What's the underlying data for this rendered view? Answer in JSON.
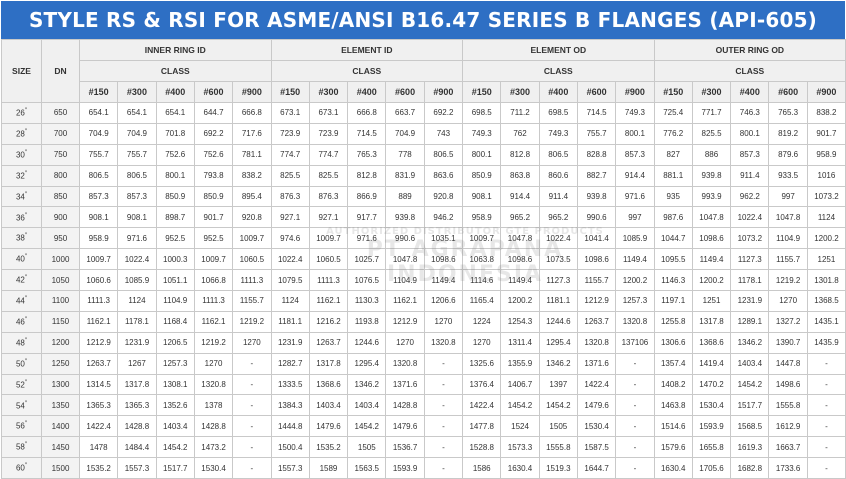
{
  "title": "STYLE RS & RSI FOR ASME/ANSI B16.47 SERIES B FLANGES (API-605)",
  "headers": {
    "size": "SIZE",
    "dn": "DN",
    "groups": [
      "INNER RING ID",
      "ELEMENT ID",
      "ELEMENT OD",
      "OUTER RING OD"
    ],
    "class_label": "CLASS",
    "classes": [
      "#150",
      "#300",
      "#400",
      "#600",
      "#900"
    ]
  },
  "watermark": {
    "line1": "AUTHORIZED DISTRIBUTOR GTE PRODUCTS",
    "line2": "PT AGRAPANA INDONESIA"
  },
  "rows": [
    {
      "size": "26",
      "dn": "650",
      "v": [
        "654.1",
        "654.1",
        "654.1",
        "644.7",
        "666.8",
        "673.1",
        "673.1",
        "666.8",
        "663.7",
        "692.2",
        "698.5",
        "711.2",
        "698.5",
        "714.5",
        "749.3",
        "725.4",
        "771.7",
        "746.3",
        "765.3",
        "838.2"
      ]
    },
    {
      "size": "28",
      "dn": "700",
      "v": [
        "704.9",
        "704.9",
        "701.8",
        "692.2",
        "717.6",
        "723.9",
        "723.9",
        "714.5",
        "704.9",
        "743",
        "749.3",
        "762",
        "749.3",
        "755.7",
        "800.1",
        "776.2",
        "825.5",
        "800.1",
        "819.2",
        "901.7"
      ]
    },
    {
      "size": "30",
      "dn": "750",
      "v": [
        "755.7",
        "755.7",
        "752.6",
        "752.6",
        "781.1",
        "774.7",
        "774.7",
        "765.3",
        "778",
        "806.5",
        "800.1",
        "812.8",
        "806.5",
        "828.8",
        "857.3",
        "827",
        "886",
        "857.3",
        "879.6",
        "958.9"
      ]
    },
    {
      "size": "32",
      "dn": "800",
      "v": [
        "806.5",
        "806.5",
        "800.1",
        "793.8",
        "838.2",
        "825.5",
        "825.5",
        "812.8",
        "831.9",
        "863.6",
        "850.9",
        "863.8",
        "860.6",
        "882.7",
        "914.4",
        "881.1",
        "939.8",
        "911.4",
        "933.5",
        "1016"
      ]
    },
    {
      "size": "34",
      "dn": "850",
      "v": [
        "857.3",
        "857.3",
        "850.9",
        "850.9",
        "895.4",
        "876.3",
        "876.3",
        "866.9",
        "889",
        "920.8",
        "908.1",
        "914.4",
        "911.4",
        "939.8",
        "971.6",
        "935",
        "993.9",
        "962.2",
        "997",
        "1073.2"
      ]
    },
    {
      "size": "36",
      "dn": "900",
      "v": [
        "908.1",
        "908.1",
        "898.7",
        "901.7",
        "920.8",
        "927.1",
        "927.1",
        "917.7",
        "939.8",
        "946.2",
        "958.9",
        "965.2",
        "965.2",
        "990.6",
        "997",
        "987.6",
        "1047.8",
        "1022.4",
        "1047.8",
        "1124"
      ]
    },
    {
      "size": "38",
      "dn": "950",
      "v": [
        "958.9",
        "971.6",
        "952.5",
        "952.5",
        "1009.7",
        "974.6",
        "1009.7",
        "971.6",
        "990.6",
        "1035.1",
        "1009.7",
        "1047.8",
        "1022.4",
        "1041.4",
        "1085.9",
        "1044.7",
        "1098.6",
        "1073.2",
        "1104.9",
        "1200.2"
      ]
    },
    {
      "size": "40",
      "dn": "1000",
      "v": [
        "1009.7",
        "1022.4",
        "1000.3",
        "1009.7",
        "1060.5",
        "1022.4",
        "1060.5",
        "1025.7",
        "1047.8",
        "1098.6",
        "1063.8",
        "1098.6",
        "1073.5",
        "1098.6",
        "1149.4",
        "1095.5",
        "1149.4",
        "1127.3",
        "1155.7",
        "1251"
      ]
    },
    {
      "size": "42",
      "dn": "1050",
      "v": [
        "1060.6",
        "1085.9",
        "1051.1",
        "1066.8",
        "1111.3",
        "1079.5",
        "1111.3",
        "1076.5",
        "1104.9",
        "1149.4",
        "1114.6",
        "1149.4",
        "1127.3",
        "1155.7",
        "1200.2",
        "1146.3",
        "1200.2",
        "1178.1",
        "1219.2",
        "1301.8"
      ]
    },
    {
      "size": "44",
      "dn": "1100",
      "v": [
        "1111.3",
        "1124",
        "1104.9",
        "1111.3",
        "1155.7",
        "1124",
        "1162.1",
        "1130.3",
        "1162.1",
        "1206.6",
        "1165.4",
        "1200.2",
        "1181.1",
        "1212.9",
        "1257.3",
        "1197.1",
        "1251",
        "1231.9",
        "1270",
        "1368.5"
      ]
    },
    {
      "size": "46",
      "dn": "1150",
      "v": [
        "1162.1",
        "1178.1",
        "1168.4",
        "1162.1",
        "1219.2",
        "1181.1",
        "1216.2",
        "1193.8",
        "1212.9",
        "1270",
        "1224",
        "1254.3",
        "1244.6",
        "1263.7",
        "1320.8",
        "1255.8",
        "1317.8",
        "1289.1",
        "1327.2",
        "1435.1"
      ]
    },
    {
      "size": "48",
      "dn": "1200",
      "v": [
        "1212.9",
        "1231.9",
        "1206.5",
        "1219.2",
        "1270",
        "1231.9",
        "1263.7",
        "1244.6",
        "1270",
        "1320.8",
        "1270",
        "1311.4",
        "1295.4",
        "1320.8",
        "137106",
        "1306.6",
        "1368.6",
        "1346.2",
        "1390.7",
        "1435.9"
      ]
    },
    {
      "size": "50",
      "dn": "1250",
      "v": [
        "1263.7",
        "1267",
        "1257.3",
        "1270",
        "-",
        "1282.7",
        "1317.8",
        "1295.4",
        "1320.8",
        "-",
        "1325.6",
        "1355.9",
        "1346.2",
        "1371.6",
        "-",
        "1357.4",
        "1419.4",
        "1403.4",
        "1447.8",
        "-"
      ]
    },
    {
      "size": "52",
      "dn": "1300",
      "v": [
        "1314.5",
        "1317.8",
        "1308.1",
        "1320.8",
        "-",
        "1333.5",
        "1368.6",
        "1346.2",
        "1371.6",
        "-",
        "1376.4",
        "1406.7",
        "1397",
        "1422.4",
        "-",
        "1408.2",
        "1470.2",
        "1454.2",
        "1498.6",
        "-"
      ]
    },
    {
      "size": "54",
      "dn": "1350",
      "v": [
        "1365.3",
        "1365.3",
        "1352.6",
        "1378",
        "-",
        "1384.3",
        "1403.4",
        "1403.4",
        "1428.8",
        "-",
        "1422.4",
        "1454.2",
        "1454.2",
        "1479.6",
        "-",
        "1463.8",
        "1530.4",
        "1517.7",
        "1555.8",
        "-"
      ]
    },
    {
      "size": "56",
      "dn": "1400",
      "v": [
        "1422.4",
        "1428.8",
        "1403.4",
        "1428.8",
        "-",
        "1444.8",
        "1479.6",
        "1454.2",
        "1479.6",
        "-",
        "1477.8",
        "1524",
        "1505",
        "1530.4",
        "-",
        "1514.6",
        "1593.9",
        "1568.5",
        "1612.9",
        "-"
      ]
    },
    {
      "size": "58",
      "dn": "1450",
      "v": [
        "1478",
        "1484.4",
        "1454.2",
        "1473.2",
        "-",
        "1500.4",
        "1535.2",
        "1505",
        "1536.7",
        "-",
        "1528.8",
        "1573.3",
        "1555.8",
        "1587.5",
        "-",
        "1579.6",
        "1655.8",
        "1619.3",
        "1663.7",
        "-"
      ]
    },
    {
      "size": "60",
      "dn": "1500",
      "v": [
        "1535.2",
        "1557.3",
        "1517.7",
        "1530.4",
        "-",
        "1557.3",
        "1589",
        "1563.5",
        "1593.9",
        "-",
        "1586",
        "1630.4",
        "1519.3",
        "1644.7",
        "-",
        "1630.4",
        "1705.6",
        "1682.8",
        "1733.6",
        "-"
      ]
    }
  ]
}
